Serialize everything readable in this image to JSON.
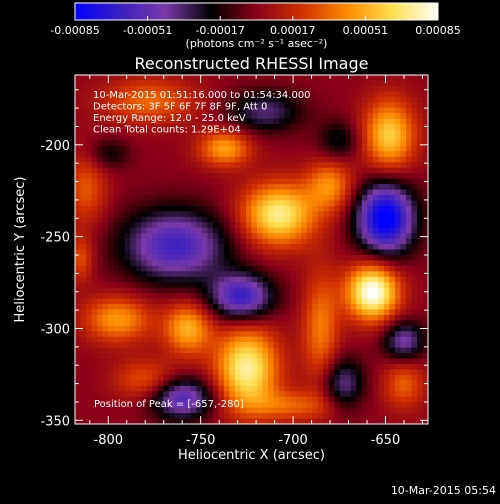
{
  "chart_data": {
    "type": "heatmap",
    "title": "Reconstructed RHESSI Image",
    "xlabel": "Heliocentric X (arcsec)",
    "ylabel": "Heliocentric Y (arcsec)",
    "xlim": [
      -818,
      -627
    ],
    "ylim": [
      -352,
      -162
    ],
    "x_ticks": [
      "-800",
      "-750",
      "-700",
      "-650"
    ],
    "x_tick_values": [
      -800,
      -750,
      -700,
      -650
    ],
    "y_ticks": [
      "-200",
      "-250",
      "-300",
      "-350"
    ],
    "y_tick_values": [
      -200,
      -250,
      -300,
      -350
    ],
    "colorbar": {
      "label": "(photons cm⁻² s⁻¹ asec⁻²)",
      "tick_labels": [
        "-0.00085",
        "-0.00051",
        "-0.00017",
        "0.00017",
        "0.00051",
        "0.00085"
      ],
      "tick_values": [
        -0.00085,
        -0.00051,
        -0.00017,
        0.00017,
        0.00051,
        0.00085
      ],
      "min": -0.00085,
      "max": 0.00085,
      "colors": [
        "#0000ff",
        "#3a20c0",
        "#7a3aa8",
        "#000000",
        "#8a0018",
        "#d03000",
        "#ff8a00",
        "#ffe050",
        "#ffffff"
      ]
    },
    "annotations": [
      "10-Mar-2015 01:51:16.000 to 01:54:34.000",
      "Detectors: 3F 5F 6F 7F 8F 9F, Att 0",
      "Energy Range: 12.0 - 25.0 keV",
      "Clean     Total counts: 1.29E+04"
    ],
    "peak_label": "Position of Peak = [-657,-280]",
    "peak": {
      "x": -657,
      "y": -280
    },
    "blobs": [
      {
        "x": -657,
        "y": -280,
        "sx": 10,
        "sy": 11,
        "amp": 0.00088
      },
      {
        "x": -725,
        "y": -322,
        "sx": 12,
        "sy": 16,
        "amp": 0.00074
      },
      {
        "x": -757,
        "y": -300,
        "sx": 9,
        "sy": 10,
        "amp": 0.00052
      },
      {
        "x": -795,
        "y": -295,
        "sx": 13,
        "sy": 9,
        "amp": 0.00046
      },
      {
        "x": -780,
        "y": -328,
        "sx": 12,
        "sy": 8,
        "amp": 0.0003
      },
      {
        "x": -708,
        "y": -238,
        "sx": 14,
        "sy": 12,
        "amp": 0.00072
      },
      {
        "x": -680,
        "y": -222,
        "sx": 9,
        "sy": 10,
        "amp": 0.00042
      },
      {
        "x": -737,
        "y": -202,
        "sx": 10,
        "sy": 7,
        "amp": 0.00048
      },
      {
        "x": -648,
        "y": -195,
        "sx": 10,
        "sy": 14,
        "amp": 0.0006
      },
      {
        "x": -778,
        "y": -176,
        "sx": 18,
        "sy": 9,
        "amp": 0.00034
      },
      {
        "x": -685,
        "y": -300,
        "sx": 7,
        "sy": 22,
        "amp": 0.00038
      },
      {
        "x": -640,
        "y": -330,
        "sx": 8,
        "sy": 10,
        "amp": 0.00032
      },
      {
        "x": -700,
        "y": -342,
        "sx": 16,
        "sy": 6,
        "amp": 0.0003
      },
      {
        "x": -812,
        "y": -224,
        "sx": 8,
        "sy": 14,
        "amp": 0.0003
      },
      {
        "x": -815,
        "y": -262,
        "sx": 5,
        "sy": 9,
        "amp": 0.00028
      },
      {
        "x": -764,
        "y": -255,
        "sx": 20,
        "sy": 14,
        "amp": -0.00062
      },
      {
        "x": -728,
        "y": -283,
        "sx": 12,
        "sy": 9,
        "amp": -0.00066
      },
      {
        "x": -650,
        "y": -240,
        "sx": 11,
        "sy": 14,
        "amp": -0.0009
      },
      {
        "x": -760,
        "y": -338,
        "sx": 12,
        "sy": 8,
        "amp": -0.00058
      },
      {
        "x": -640,
        "y": -307,
        "sx": 8,
        "sy": 8,
        "amp": -0.00046
      },
      {
        "x": -715,
        "y": -182,
        "sx": 14,
        "sy": 8,
        "amp": -0.00036
      },
      {
        "x": -675,
        "y": -198,
        "sx": 8,
        "sy": 8,
        "amp": -0.00026
      },
      {
        "x": -673,
        "y": -330,
        "sx": 8,
        "sy": 10,
        "amp": -0.0004
      },
      {
        "x": -800,
        "y": -205,
        "sx": 8,
        "sy": 6,
        "amp": -0.00022
      }
    ]
  },
  "footer": {
    "timestamp": "10-Mar-2015 05:54"
  }
}
